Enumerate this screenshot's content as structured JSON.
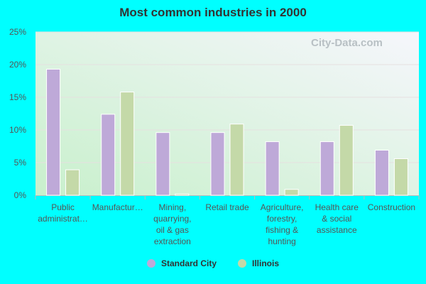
{
  "chart_data": {
    "type": "bar",
    "title": "Most common industries in 2000",
    "categories": [
      "Public administrat…",
      "Manufactur…",
      "Mining, quarrying, oil & gas extraction",
      "Retail trade",
      "Agriculture, forestry, fishing & hunting",
      "Health care & social assistance",
      "Construction"
    ],
    "category_lines": [
      [
        "Public",
        "administrat…"
      ],
      [
        "Manufactur…"
      ],
      [
        "Mining,",
        "quarrying,",
        "oil & gas",
        "extraction"
      ],
      [
        "Retail trade"
      ],
      [
        "Agriculture,",
        "forestry,",
        "fishing &",
        "hunting"
      ],
      [
        "Health care",
        "& social",
        "assistance"
      ],
      [
        "Construction"
      ]
    ],
    "series": [
      {
        "name": "Standard City",
        "color": "#bea9d8",
        "values": [
          19.3,
          12.4,
          9.6,
          9.6,
          8.2,
          8.2,
          6.9
        ]
      },
      {
        "name": "Illinois",
        "color": "#c4d9a8",
        "values": [
          3.9,
          15.8,
          0.2,
          10.9,
          0.9,
          10.7,
          5.6
        ]
      }
    ],
    "ylim": [
      0,
      25
    ],
    "yticks": [
      "0%",
      "5%",
      "10%",
      "15%",
      "20%",
      "25%"
    ],
    "grid": true,
    "legend": "bottom",
    "watermark": "City-Data.com"
  }
}
